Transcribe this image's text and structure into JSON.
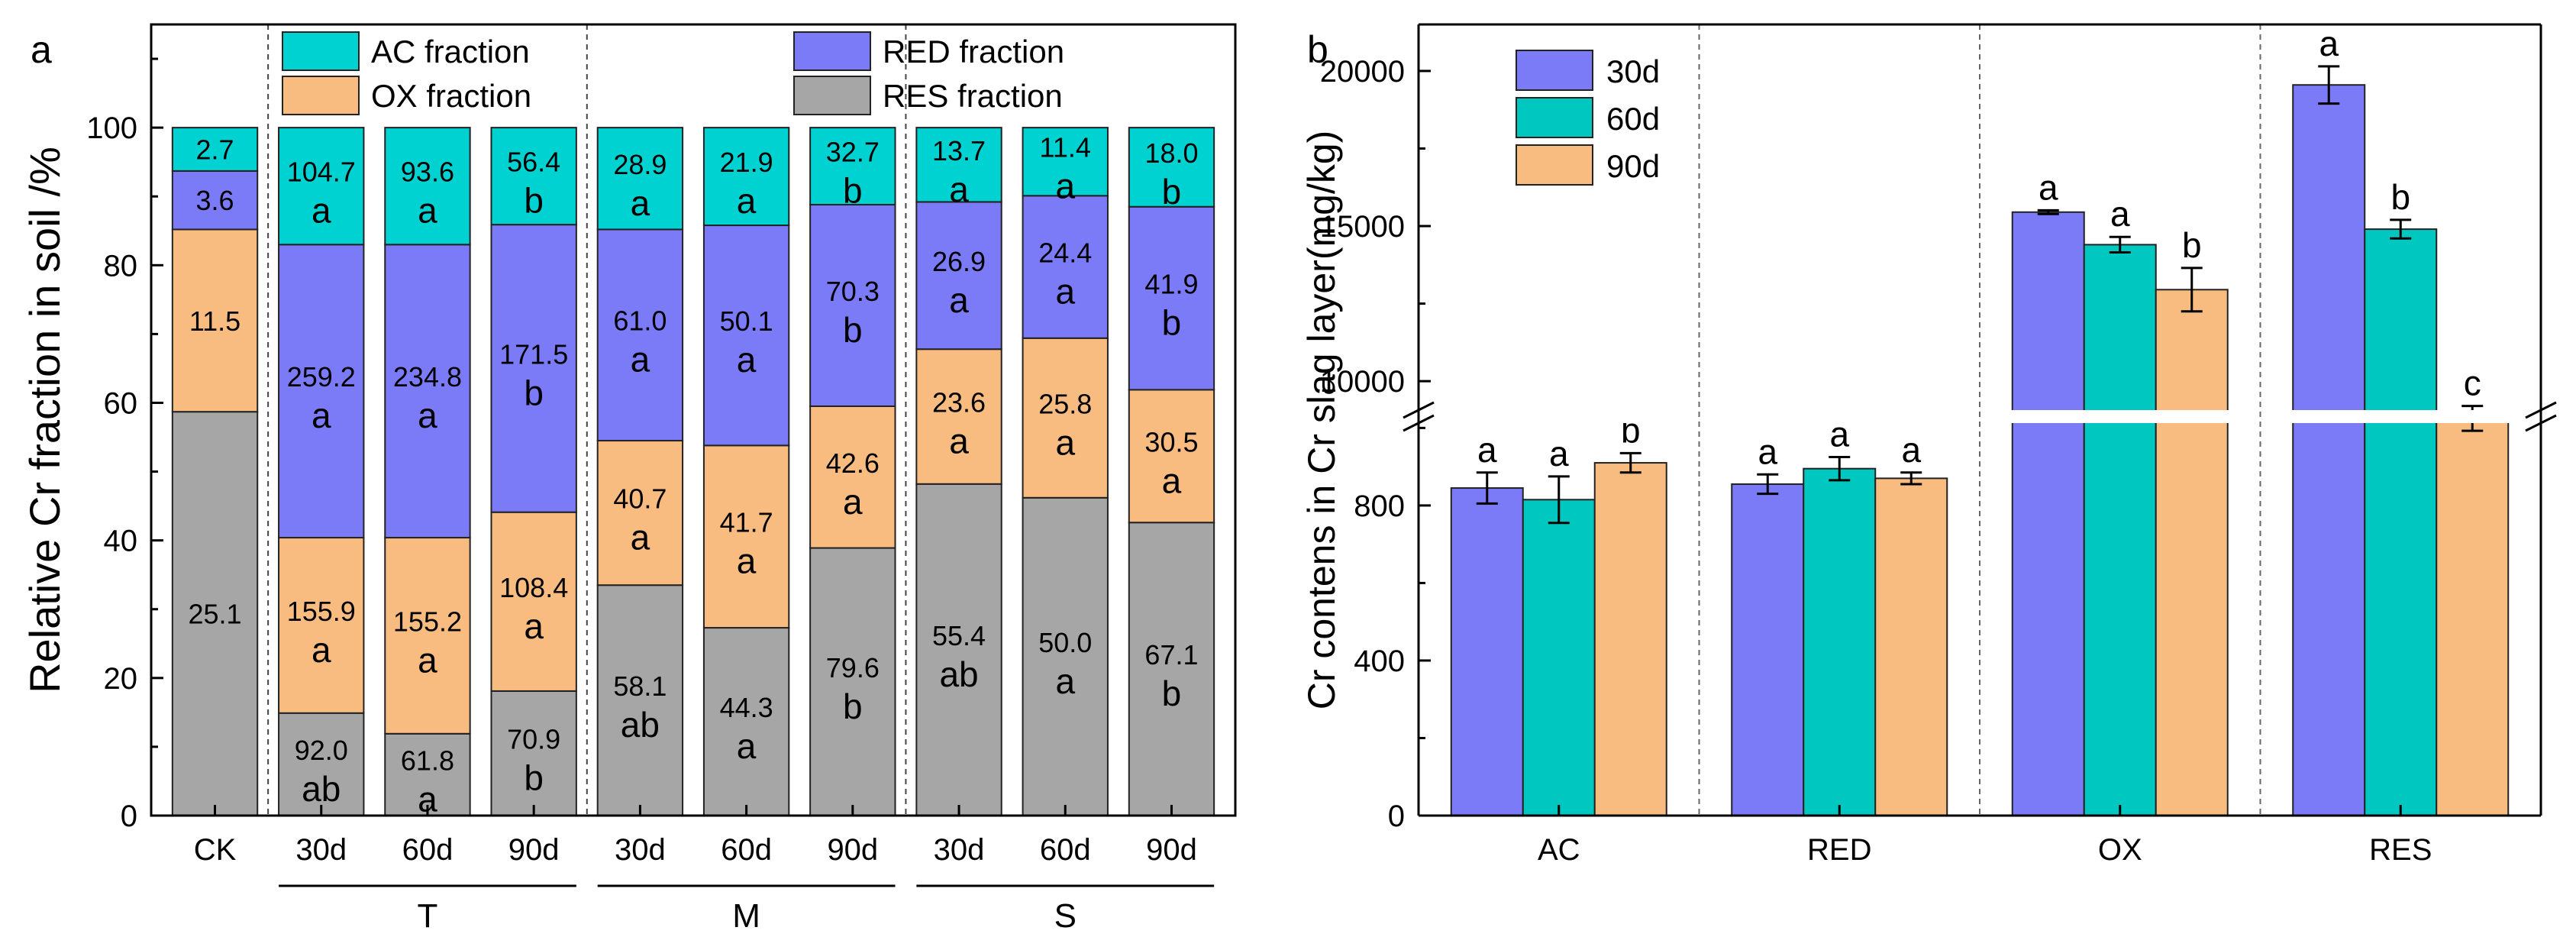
{
  "chart_data": [
    {
      "panel": "a",
      "type": "bar",
      "stacked": true,
      "ylabel": "Relative Cr fraction in soil /%",
      "ylim": [
        0,
        115
      ],
      "yticks": [
        0,
        20,
        40,
        60,
        80,
        100
      ],
      "categories": [
        "CK",
        "30d",
        "60d",
        "90d",
        "30d",
        "60d",
        "90d",
        "30d",
        "60d",
        "90d"
      ],
      "groups": [
        {
          "label": "T",
          "from": 1,
          "to": 3
        },
        {
          "label": "M",
          "from": 4,
          "to": 6
        },
        {
          "label": "S",
          "from": 7,
          "to": 9
        }
      ],
      "series": [
        {
          "name": "RES fraction",
          "key": "RES",
          "color": "#a6a6a6",
          "values": [
            58.7,
            14.9,
            11.9,
            18.1,
            33.5,
            27.3,
            38.9,
            48.2,
            46.2,
            42.6
          ],
          "labels": [
            "25.1",
            "92.0",
            "61.8",
            "70.9",
            "58.1",
            "44.3",
            "79.6",
            "55.4",
            "50.0",
            "67.1"
          ],
          "letters": [
            "",
            "ab",
            "a",
            "b",
            "ab",
            "a",
            "b",
            "ab",
            "a",
            "b"
          ]
        },
        {
          "name": "OX fraction",
          "key": "OX",
          "color": "#f8bc80",
          "values": [
            26.5,
            25.5,
            28.5,
            26.0,
            21.0,
            26.5,
            20.6,
            19.6,
            23.2,
            19.3
          ],
          "labels": [
            "11.5",
            "155.9",
            "155.2",
            "108.4",
            "40.7",
            "41.7",
            "42.6",
            "23.6",
            "25.8",
            "30.5"
          ],
          "letters": [
            "",
            "a",
            "a",
            "a",
            "a",
            "a",
            "a",
            "a",
            "a",
            "a"
          ]
        },
        {
          "name": "RED fraction",
          "key": "RED",
          "color": "#7b7bf8",
          "values": [
            8.5,
            42.6,
            42.6,
            41.8,
            30.7,
            32.0,
            29.3,
            21.4,
            20.7,
            26.6
          ],
          "labels": [
            "3.6",
            "259.2",
            "234.8",
            "171.5",
            "61.0",
            "50.1",
            "70.3",
            "26.9",
            "24.4",
            "41.9"
          ],
          "letters": [
            "",
            "a",
            "a",
            "b",
            "a",
            "a",
            "b",
            "a",
            "a",
            "b"
          ]
        },
        {
          "name": "AC fraction",
          "key": "AC",
          "color": "#00d2d2",
          "values": [
            6.3,
            17.0,
            17.0,
            14.1,
            14.8,
            14.2,
            11.2,
            10.8,
            9.9,
            11.5
          ],
          "labels": [
            "2.7",
            "104.7",
            "93.6",
            "56.4",
            "28.9",
            "21.9",
            "32.7",
            "13.7",
            "11.4",
            "18.0"
          ],
          "letters": [
            "",
            "a",
            "a",
            "b",
            "a",
            "a",
            "b",
            "a",
            "a",
            "b"
          ]
        }
      ],
      "legend": [
        "AC fraction",
        "RED fraction",
        "OX fraction",
        "RES fraction"
      ]
    },
    {
      "panel": "b",
      "type": "bar",
      "ylabel": "Cr contens in Cr slag layer(mg/kg)",
      "axis_break": {
        "lower": [
          0,
          1050
        ],
        "upper": [
          8600,
          21500
        ]
      },
      "yticks_lower": [
        0,
        400,
        800
      ],
      "yticks_upper": [
        10000,
        15000,
        20000
      ],
      "categories": [
        "AC",
        "RED",
        "OX",
        "RES"
      ],
      "series": [
        {
          "name": "30d",
          "color": "#7b7bf8",
          "values": [
            845,
            855,
            15450,
            19550
          ],
          "errors": [
            40,
            25,
            60,
            600
          ],
          "letters": [
            "a",
            "a",
            "a",
            "a"
          ]
        },
        {
          "name": "60d",
          "color": "#00c8c0",
          "values": [
            815,
            895,
            14400,
            14900
          ],
          "errors": [
            60,
            30,
            250,
            300
          ],
          "letters": [
            "a",
            "a",
            "a",
            "b"
          ]
        },
        {
          "name": "90d",
          "color": "#f8bc80",
          "values": [
            910,
            870,
            12950,
            8800
          ],
          "errors": [
            25,
            15,
            700,
            400
          ],
          "letters": [
            "b",
            "a",
            "b",
            "c"
          ]
        }
      ],
      "legend": [
        "30d",
        "60d",
        "90d"
      ]
    }
  ]
}
